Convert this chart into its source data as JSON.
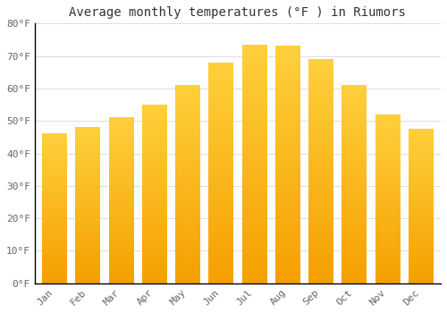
{
  "title": "Average monthly temperatures (°F ) in Riumors",
  "months": [
    "Jan",
    "Feb",
    "Mar",
    "Apr",
    "May",
    "Jun",
    "Jul",
    "Aug",
    "Sep",
    "Oct",
    "Nov",
    "Dec"
  ],
  "values": [
    46,
    48,
    51,
    55,
    61,
    68,
    73.5,
    73,
    69,
    61,
    52,
    47.5
  ],
  "bar_color_bottom": "#F5A000",
  "bar_color_top": "#FFD040",
  "ylim": [
    0,
    80
  ],
  "yticks": [
    0,
    10,
    20,
    30,
    40,
    50,
    60,
    70,
    80
  ],
  "ytick_labels": [
    "0°F",
    "10°F",
    "20°F",
    "30°F",
    "40°F",
    "50°F",
    "60°F",
    "70°F",
    "80°F"
  ],
  "background_color": "#ffffff",
  "plot_bg_color": "#ffffff",
  "grid_color": "#dddddd",
  "title_fontsize": 10,
  "tick_fontsize": 8,
  "tick_color": "#666666",
  "spine_color": "#000000",
  "bar_width": 0.75
}
